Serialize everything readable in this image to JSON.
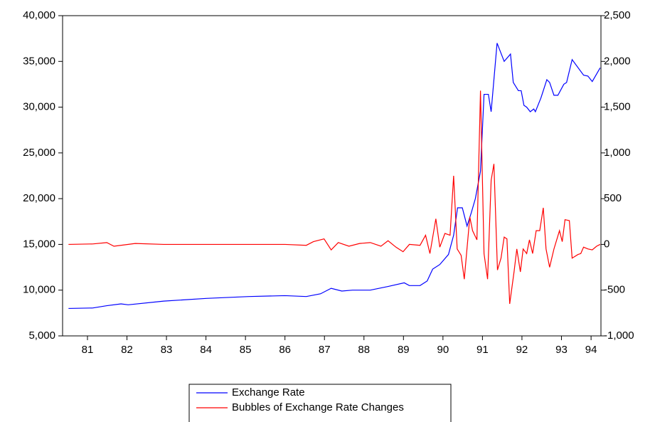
{
  "chart_data": {
    "type": "line",
    "xlim": [
      80.87,
      94.5
    ],
    "xticks": [
      {
        "value": 81.5,
        "label": "81"
      },
      {
        "value": 82.5,
        "label": "82"
      },
      {
        "value": 83.5,
        "label": "83"
      },
      {
        "value": 84.5,
        "label": "84"
      },
      {
        "value": 85.5,
        "label": "85"
      },
      {
        "value": 86.5,
        "label": "86"
      },
      {
        "value": 87.5,
        "label": "87"
      },
      {
        "value": 88.5,
        "label": "88"
      },
      {
        "value": 89.5,
        "label": "89"
      },
      {
        "value": 90.5,
        "label": "90"
      },
      {
        "value": 91.5,
        "label": "91"
      },
      {
        "value": 92.5,
        "label": "92"
      },
      {
        "value": 93.5,
        "label": "93"
      },
      {
        "value": 94.25,
        "label": "94"
      }
    ],
    "ylim": [
      5000,
      40000
    ],
    "yticks": [
      {
        "value": 5000,
        "label": "5,000"
      },
      {
        "value": 10000,
        "label": "10,000"
      },
      {
        "value": 15000,
        "label": "15,000"
      },
      {
        "value": 20000,
        "label": "20,000"
      },
      {
        "value": 25000,
        "label": "25,000"
      },
      {
        "value": 30000,
        "label": "30,000"
      },
      {
        "value": 35000,
        "label": "35,000"
      },
      {
        "value": 40000,
        "label": "40,000"
      }
    ],
    "y2lim": [
      -1000,
      2500
    ],
    "y2ticks": [
      {
        "value": -1000,
        "label": "-1,000"
      },
      -500,
      0,
      500,
      {
        "value": 1000,
        "label": "1,000"
      },
      {
        "value": 1500,
        "label": "1,500"
      },
      {
        "value": 2000,
        "label": "2,000"
      },
      {
        "value": 2500,
        "label": "2,500"
      }
    ],
    "series": [
      {
        "name": "Exchange Rate",
        "color": "#0000ff",
        "x": [
          81.02,
          81.63,
          81.99,
          82.35,
          82.53,
          83.43,
          84.51,
          85.59,
          86.5,
          87.04,
          87.4,
          87.67,
          87.94,
          88.21,
          88.66,
          89.11,
          89.52,
          89.65,
          89.92,
          90.1,
          90.24,
          90.42,
          90.64,
          90.77,
          90.87,
          90.99,
          91.11,
          91.22,
          91.32,
          91.45,
          91.54,
          91.65,
          91.72,
          91.87,
          92.05,
          92.21,
          92.28,
          92.41,
          92.48,
          92.55,
          92.62,
          92.71,
          92.8,
          92.84,
          92.98,
          93.13,
          93.2,
          93.31,
          93.41,
          93.56,
          93.63,
          93.77,
          94.06,
          94.17,
          94.28,
          94.48
        ],
        "values": [
          8000,
          8050,
          8300,
          8500,
          8400,
          8800,
          9100,
          9300,
          9400,
          9300,
          9600,
          10200,
          9900,
          10000,
          10000,
          10400,
          10800,
          10500,
          10500,
          11000,
          12300,
          12800,
          13900,
          16000,
          19000,
          19000,
          17000,
          18500,
          20000,
          23000,
          31400,
          31400,
          29500,
          37000,
          35000,
          35800,
          32700,
          31800,
          31800,
          30200,
          30000,
          29500,
          29800,
          29500,
          31000,
          33000,
          32700,
          31300,
          31300,
          32500,
          32700,
          35200,
          33500,
          33400,
          32800,
          34300
        ]
      },
      {
        "name": "Bubbles of Exchange Rate Changes",
        "color": "#ff0000",
        "axis": "y2",
        "x": [
          81.02,
          81.63,
          81.99,
          82.17,
          82.71,
          83.43,
          84.51,
          85.59,
          86.5,
          87.04,
          87.22,
          87.49,
          87.67,
          87.85,
          88.12,
          88.39,
          88.66,
          88.93,
          89.11,
          89.31,
          89.49,
          89.65,
          89.92,
          90.06,
          90.17,
          90.32,
          90.42,
          90.55,
          90.68,
          90.77,
          90.86,
          90.96,
          91.04,
          91.18,
          91.25,
          91.36,
          91.45,
          91.54,
          91.63,
          91.72,
          91.79,
          91.88,
          91.97,
          92.05,
          92.12,
          92.19,
          92.3,
          92.37,
          92.46,
          92.53,
          92.62,
          92.69,
          92.77,
          92.86,
          92.95,
          93.04,
          93.11,
          93.2,
          93.31,
          93.45,
          93.52,
          93.59,
          93.7,
          93.77,
          93.92,
          93.99,
          94.06,
          94.17,
          94.28,
          94.39,
          94.48
        ],
        "values": [
          0,
          5,
          20,
          -20,
          10,
          0,
          0,
          0,
          0,
          -10,
          30,
          60,
          -60,
          20,
          -20,
          10,
          20,
          -20,
          40,
          -30,
          -80,
          0,
          -10,
          100,
          -100,
          280,
          -30,
          120,
          100,
          750,
          -50,
          -120,
          -380,
          300,
          150,
          50,
          1680,
          -100,
          -380,
          700,
          880,
          -280,
          -150,
          80,
          60,
          -650,
          -300,
          -50,
          -300,
          -50,
          -100,
          50,
          -100,
          150,
          150,
          400,
          -50,
          -250,
          -50,
          150,
          30,
          270,
          260,
          -150,
          -110,
          -100,
          -30,
          -50,
          -60,
          -20,
          0
        ]
      }
    ]
  }
}
